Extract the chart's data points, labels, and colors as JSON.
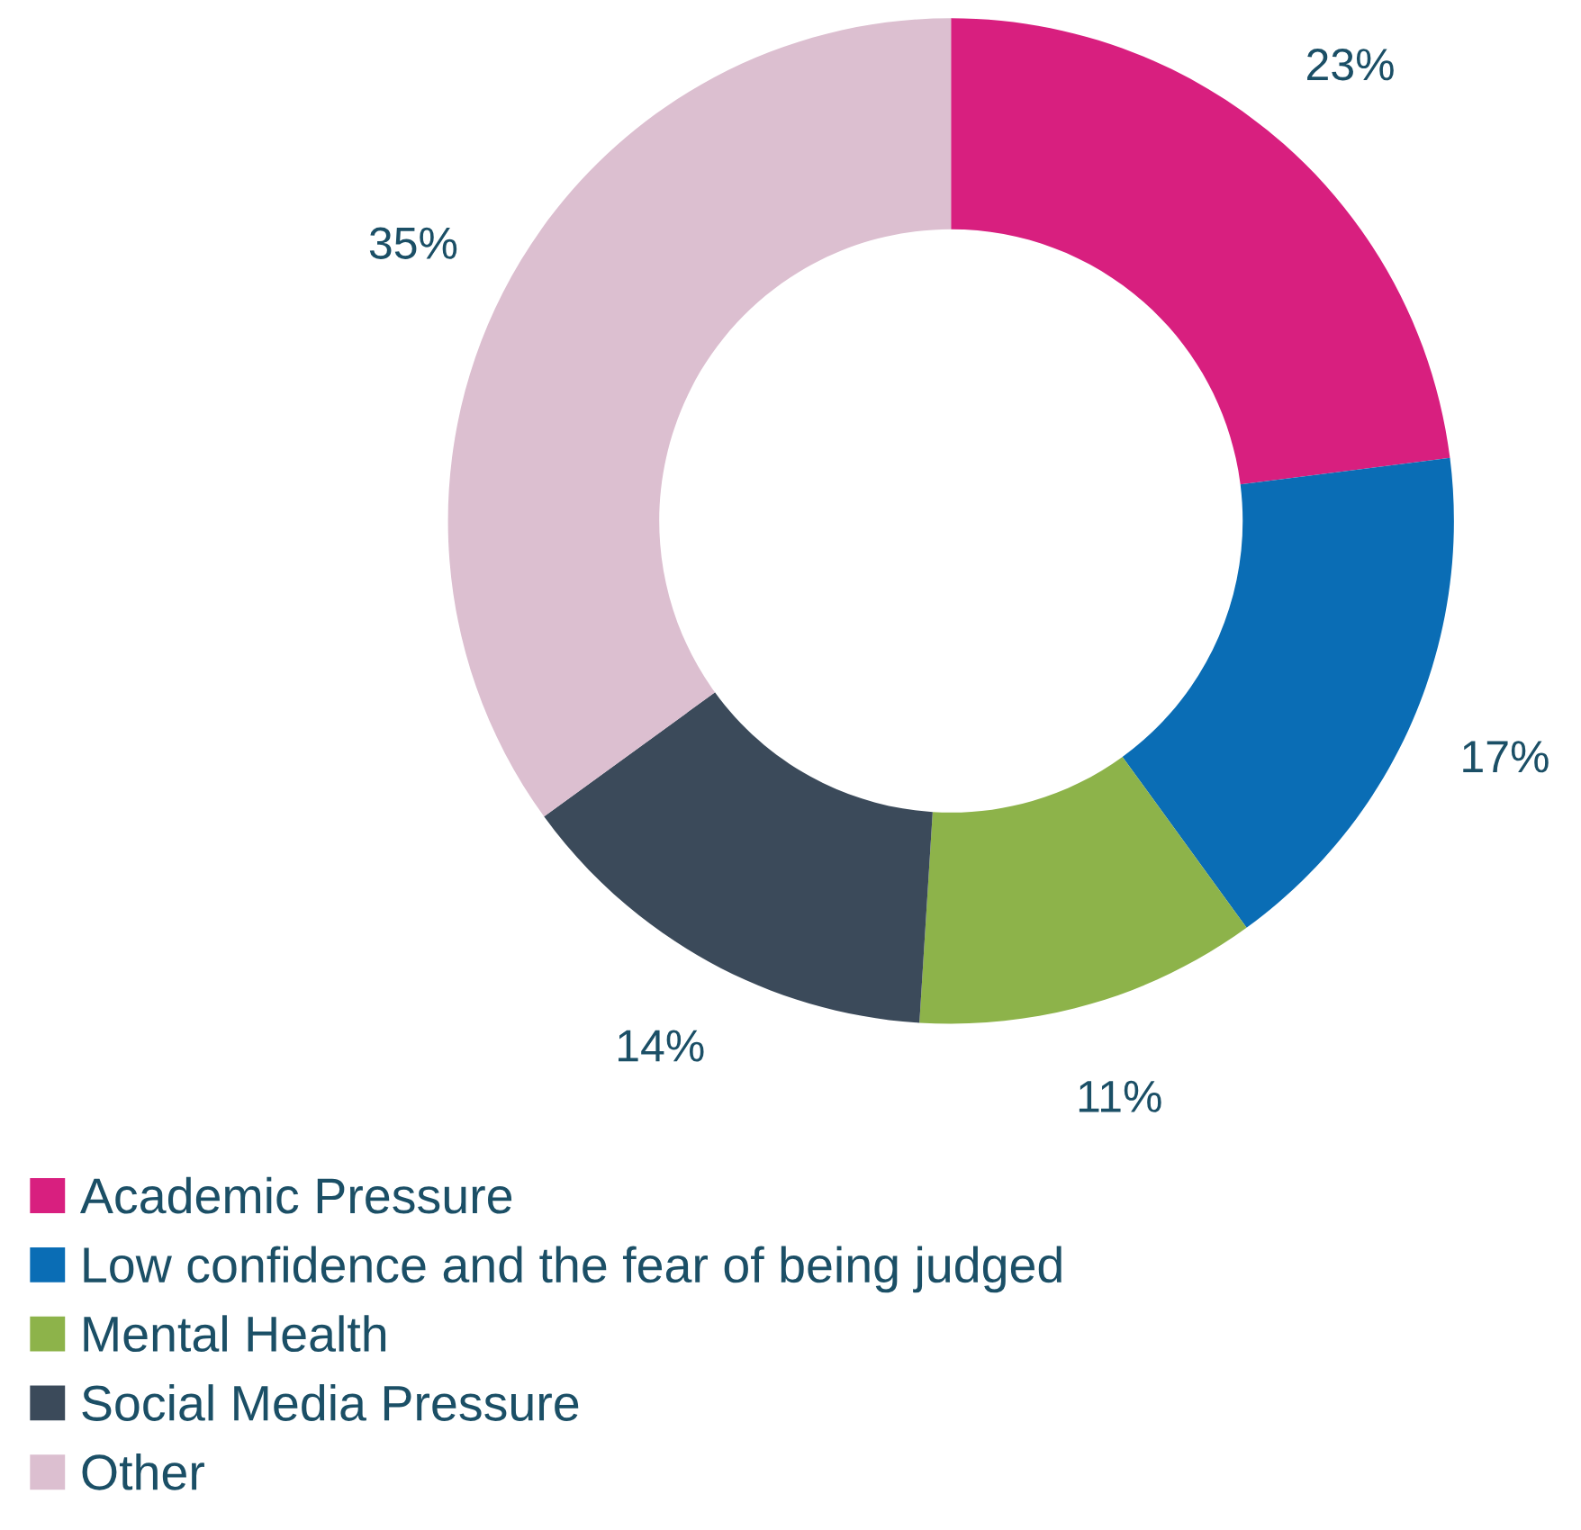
{
  "chart_data": {
    "type": "donut",
    "categories": [
      "Academic Pressure",
      "Low confidence and the fear of being judged",
      "Mental Health",
      "Social Media Pressure",
      "Other"
    ],
    "values": [
      23,
      17,
      11,
      14,
      35
    ],
    "colors": [
      "#d81f7f",
      "#0a6db5",
      "#8db34a",
      "#3b4a5a",
      "#dcbfd0"
    ],
    "value_labels": [
      "23%",
      "17%",
      "11%",
      "14%",
      "35%"
    ],
    "legend": "bottom left"
  }
}
